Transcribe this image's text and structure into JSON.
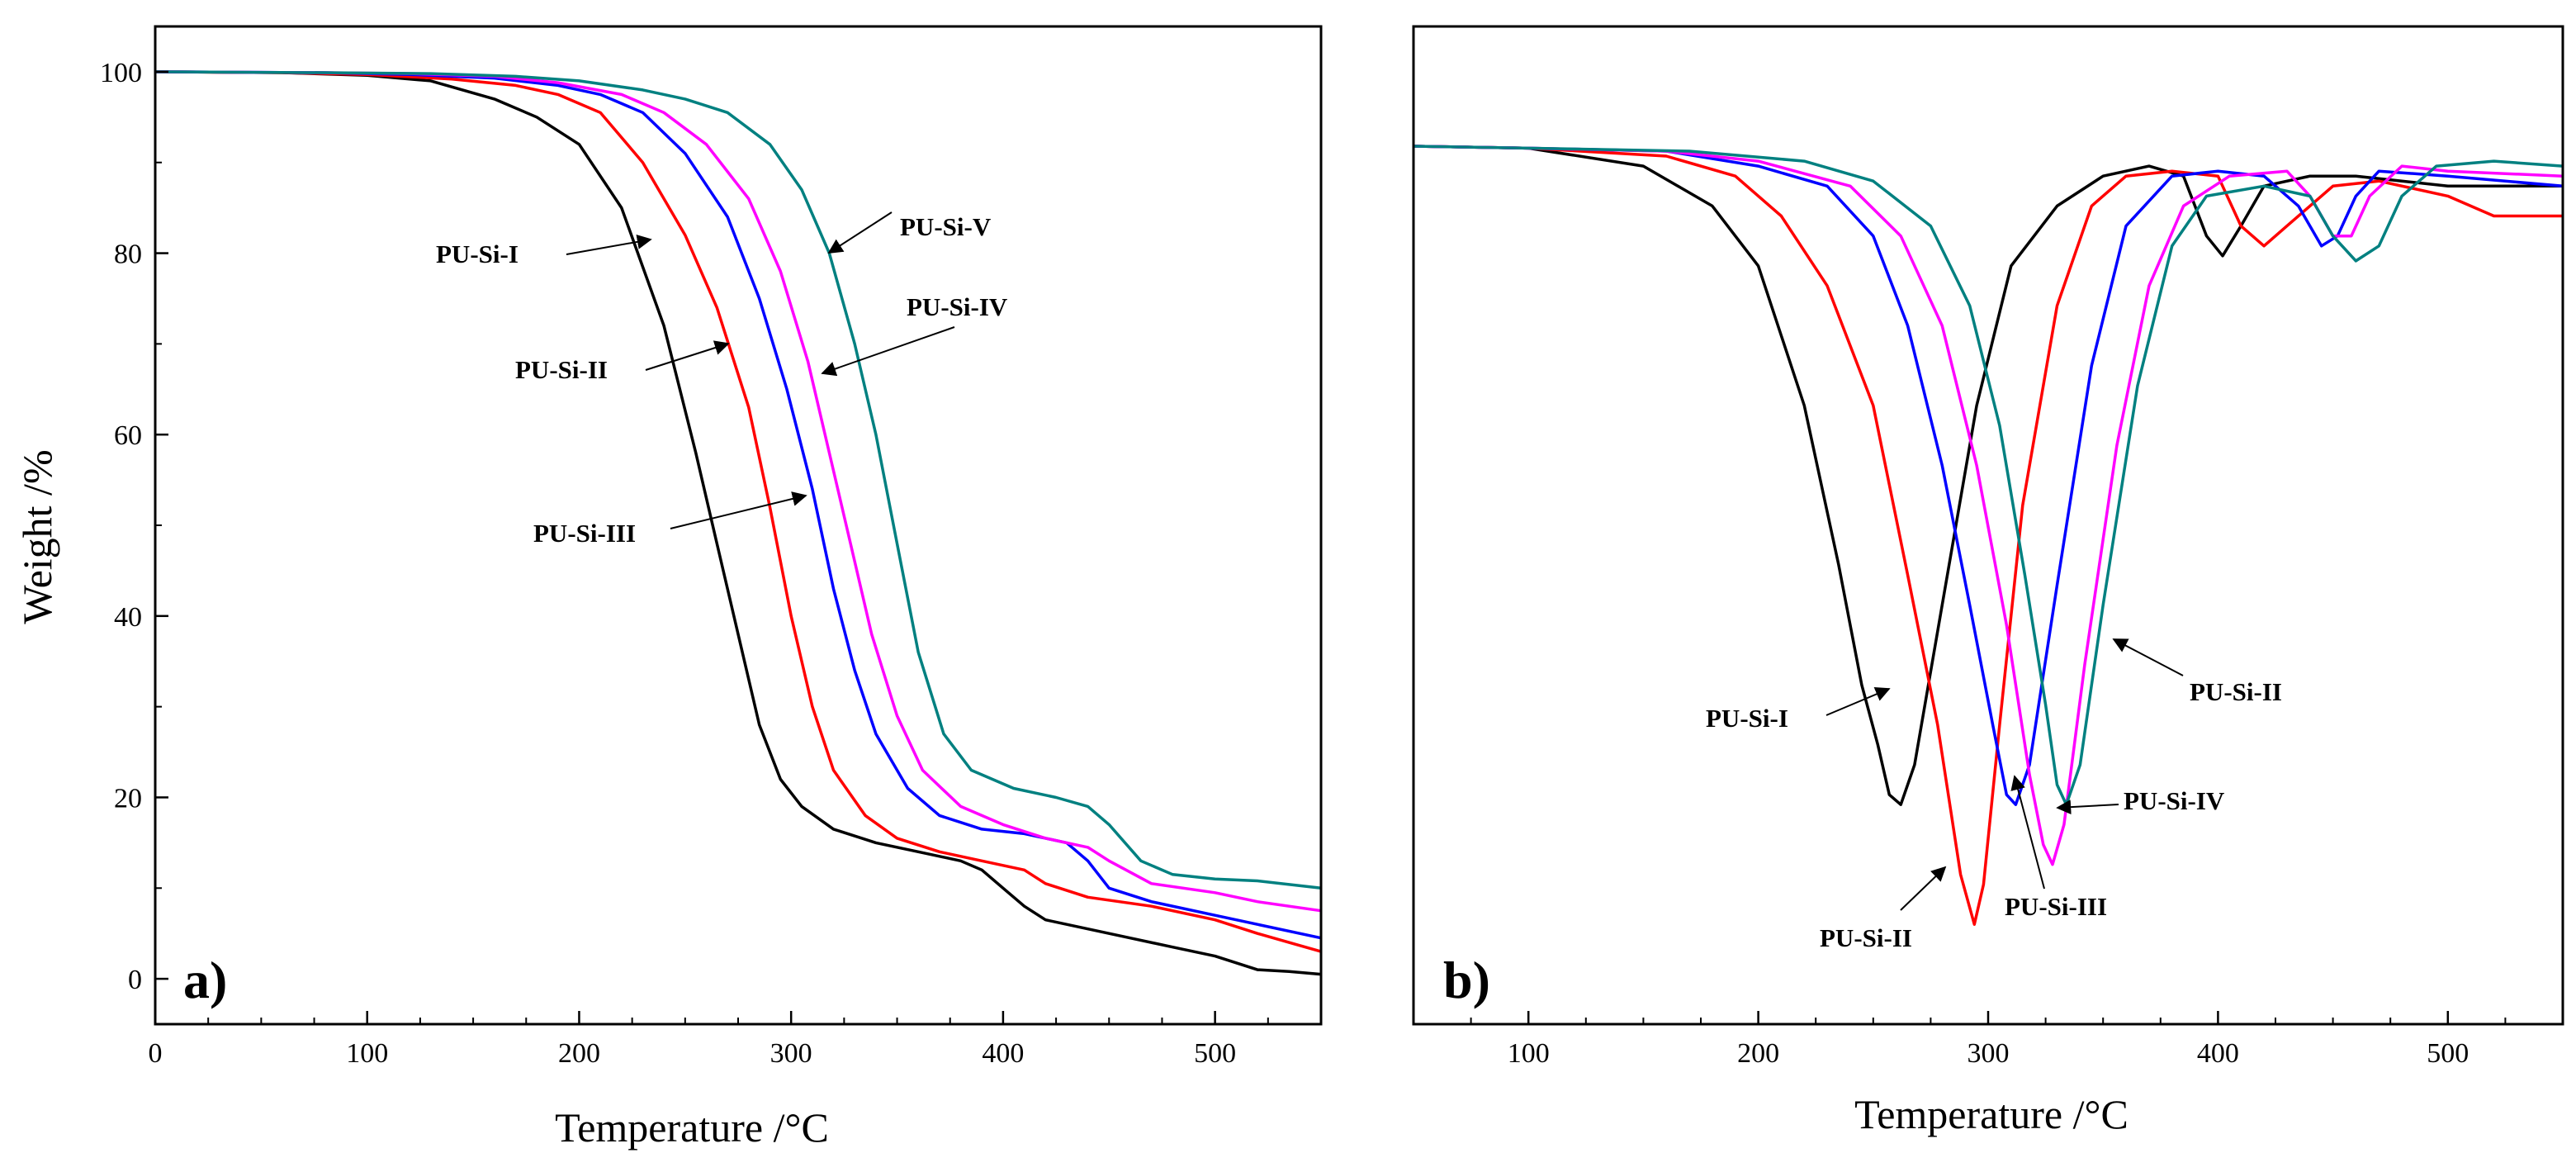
{
  "chart_data": [
    {
      "type": "line",
      "panel_label": "a)",
      "xlabel": "Temperature /°C",
      "ylabel": "Weight /%",
      "xlim": [
        0,
        550
      ],
      "ylim": [
        -5,
        105
      ],
      "xticks": [
        0,
        100,
        200,
        300,
        400,
        500
      ],
      "xtick_labels": [
        "0",
        "100",
        "200",
        "300",
        "400",
        "500"
      ],
      "yticks": [
        0,
        20,
        40,
        60,
        80,
        100
      ],
      "ytick_labels": [
        "0",
        "20",
        "40",
        "60",
        "80",
        "100"
      ],
      "grid": false,
      "series": [
        {
          "name": "PU-Si-I",
          "color": "#000000",
          "points": [
            [
              0,
              100
            ],
            [
              60,
              99.9
            ],
            [
              100,
              99.6
            ],
            [
              130,
              99
            ],
            [
              160,
              97
            ],
            [
              180,
              95
            ],
            [
              200,
              92
            ],
            [
              220,
              85
            ],
            [
              240,
              72
            ],
            [
              255,
              58
            ],
            [
              265,
              48
            ],
            [
              275,
              38
            ],
            [
              285,
              28
            ],
            [
              295,
              22
            ],
            [
              305,
              19
            ],
            [
              320,
              16.5
            ],
            [
              340,
              15
            ],
            [
              360,
              14
            ],
            [
              380,
              13
            ],
            [
              390,
              12
            ],
            [
              400,
              10
            ],
            [
              410,
              8
            ],
            [
              420,
              6.5
            ],
            [
              440,
              5.5
            ],
            [
              460,
              4.5
            ],
            [
              480,
              3.5
            ],
            [
              500,
              2.5
            ],
            [
              520,
              1
            ],
            [
              535,
              0.8
            ],
            [
              550,
              0.5
            ]
          ]
        },
        {
          "name": "PU-Si-II",
          "color": "#ff0000",
          "points": [
            [
              0,
              100
            ],
            [
              60,
              99.9
            ],
            [
              100,
              99.7
            ],
            [
              140,
              99.2
            ],
            [
              170,
              98.5
            ],
            [
              190,
              97.5
            ],
            [
              210,
              95.5
            ],
            [
              230,
              90
            ],
            [
              250,
              82
            ],
            [
              265,
              74
            ],
            [
              280,
              63
            ],
            [
              290,
              52
            ],
            [
              300,
              40
            ],
            [
              310,
              30
            ],
            [
              320,
              23
            ],
            [
              335,
              18
            ],
            [
              350,
              15.5
            ],
            [
              370,
              14
            ],
            [
              390,
              13
            ],
            [
              410,
              12
            ],
            [
              420,
              10.5
            ],
            [
              440,
              9
            ],
            [
              470,
              8
            ],
            [
              500,
              6.5
            ],
            [
              520,
              5
            ],
            [
              550,
              3
            ]
          ]
        },
        {
          "name": "PU-Si-III",
          "color": "#0000ff",
          "points": [
            [
              0,
              100
            ],
            [
              80,
              99.9
            ],
            [
              120,
              99.7
            ],
            [
              160,
              99.3
            ],
            [
              190,
              98.5
            ],
            [
              210,
              97.5
            ],
            [
              230,
              95.5
            ],
            [
              250,
              91
            ],
            [
              270,
              84
            ],
            [
              285,
              75
            ],
            [
              298,
              65
            ],
            [
              310,
              54
            ],
            [
              320,
              43
            ],
            [
              330,
              34
            ],
            [
              340,
              27
            ],
            [
              355,
              21
            ],
            [
              370,
              18
            ],
            [
              390,
              16.5
            ],
            [
              410,
              16
            ],
            [
              430,
              15
            ],
            [
              440,
              13
            ],
            [
              450,
              10
            ],
            [
              470,
              8.5
            ],
            [
              500,
              7
            ],
            [
              520,
              6
            ],
            [
              550,
              4.5
            ]
          ]
        },
        {
          "name": "PU-Si-IV",
          "color": "#ff00ff",
          "points": [
            [
              0,
              100
            ],
            [
              80,
              99.9
            ],
            [
              120,
              99.8
            ],
            [
              160,
              99.5
            ],
            [
              190,
              98.8
            ],
            [
              220,
              97.5
            ],
            [
              240,
              95.5
            ],
            [
              260,
              92
            ],
            [
              280,
              86
            ],
            [
              295,
              78
            ],
            [
              308,
              68
            ],
            [
              318,
              58
            ],
            [
              328,
              48
            ],
            [
              338,
              38
            ],
            [
              350,
              29
            ],
            [
              362,
              23
            ],
            [
              380,
              19
            ],
            [
              400,
              17
            ],
            [
              420,
              15.5
            ],
            [
              440,
              14.5
            ],
            [
              450,
              13
            ],
            [
              470,
              10.5
            ],
            [
              500,
              9.5
            ],
            [
              520,
              8.5
            ],
            [
              550,
              7.5
            ]
          ]
        },
        {
          "name": "PU-Si-V",
          "color": "#008080",
          "points": [
            [
              0,
              100
            ],
            [
              80,
              99.9
            ],
            [
              130,
              99.8
            ],
            [
              170,
              99.5
            ],
            [
              200,
              99
            ],
            [
              230,
              98
            ],
            [
              250,
              97
            ],
            [
              270,
              95.5
            ],
            [
              290,
              92
            ],
            [
              305,
              87
            ],
            [
              318,
              80
            ],
            [
              330,
              70
            ],
            [
              340,
              60
            ],
            [
              350,
              48
            ],
            [
              360,
              36
            ],
            [
              372,
              27
            ],
            [
              385,
              23
            ],
            [
              405,
              21
            ],
            [
              425,
              20
            ],
            [
              440,
              19
            ],
            [
              450,
              17
            ],
            [
              465,
              13
            ],
            [
              480,
              11.5
            ],
            [
              500,
              11
            ],
            [
              520,
              10.8
            ],
            [
              550,
              10
            ]
          ]
        }
      ],
      "annotations": [
        "PU-Si-V",
        "PU-Si-I",
        "PU-Si-IV",
        "PU-Si-II",
        "PU-Si-III"
      ]
    },
    {
      "type": "line",
      "panel_label": "b)",
      "xlabel": "Temperature /°C",
      "ylabel": "",
      "xlim": [
        50,
        550
      ],
      "ylim": [
        0,
        100
      ],
      "xticks": [
        100,
        200,
        300,
        400,
        500
      ],
      "xtick_labels": [
        "100",
        "200",
        "300",
        "400",
        "500"
      ],
      "yticks": [],
      "grid": false,
      "series": [
        {
          "name": "PU-Si-I",
          "color": "#000000",
          "points": [
            [
              50,
              88
            ],
            [
              100,
              87.8
            ],
            [
              150,
              86
            ],
            [
              180,
              82
            ],
            [
              200,
              76
            ],
            [
              220,
              62
            ],
            [
              235,
              46
            ],
            [
              245,
              34
            ],
            [
              252,
              28
            ],
            [
              257,
              23
            ],
            [
              262,
              22
            ],
            [
              268,
              26
            ],
            [
              280,
              42
            ],
            [
              295,
              62
            ],
            [
              310,
              76
            ],
            [
              330,
              82
            ],
            [
              350,
              85
            ],
            [
              370,
              86
            ],
            [
              385,
              85
            ],
            [
              395,
              79
            ],
            [
              402,
              77
            ],
            [
              410,
              80
            ],
            [
              420,
              84
            ],
            [
              440,
              85
            ],
            [
              460,
              85
            ],
            [
              480,
              84.5
            ],
            [
              500,
              84
            ],
            [
              550,
              84
            ]
          ]
        },
        {
          "name": "PU-Si-II",
          "color": "#ff0000",
          "points": [
            [
              50,
              88
            ],
            [
              100,
              87.8
            ],
            [
              160,
              87
            ],
            [
              190,
              85
            ],
            [
              210,
              81
            ],
            [
              230,
              74
            ],
            [
              250,
              62
            ],
            [
              265,
              45
            ],
            [
              278,
              30
            ],
            [
              288,
              15
            ],
            [
              294,
              10
            ],
            [
              298,
              14
            ],
            [
              305,
              30
            ],
            [
              315,
              52
            ],
            [
              330,
              72
            ],
            [
              345,
              82
            ],
            [
              360,
              85
            ],
            [
              380,
              85.5
            ],
            [
              400,
              85
            ],
            [
              410,
              80
            ],
            [
              420,
              78
            ],
            [
              430,
              80
            ],
            [
              450,
              84
            ],
            [
              470,
              84.5
            ],
            [
              500,
              83
            ],
            [
              520,
              81
            ],
            [
              550,
              81
            ]
          ]
        },
        {
          "name": "PU-Si-III",
          "color": "#0000ff",
          "points": [
            [
              50,
              88
            ],
            [
              100,
              87.8
            ],
            [
              160,
              87.5
            ],
            [
              200,
              86
            ],
            [
              230,
              84
            ],
            [
              250,
              79
            ],
            [
              265,
              70
            ],
            [
              280,
              56
            ],
            [
              292,
              42
            ],
            [
              302,
              30
            ],
            [
              308,
              23
            ],
            [
              312,
              22
            ],
            [
              318,
              26
            ],
            [
              330,
              44
            ],
            [
              345,
              66
            ],
            [
              360,
              80
            ],
            [
              380,
              85
            ],
            [
              400,
              85.5
            ],
            [
              420,
              85
            ],
            [
              435,
              82
            ],
            [
              445,
              78
            ],
            [
              452,
              79
            ],
            [
              460,
              83
            ],
            [
              470,
              85.5
            ],
            [
              500,
              85
            ],
            [
              550,
              84
            ]
          ]
        },
        {
          "name": "PU-Si-IV",
          "color": "#ff00ff",
          "points": [
            [
              50,
              88
            ],
            [
              100,
              87.8
            ],
            [
              160,
              87.5
            ],
            [
              200,
              86.5
            ],
            [
              240,
              84
            ],
            [
              262,
              79
            ],
            [
              280,
              70
            ],
            [
              295,
              56
            ],
            [
              308,
              40
            ],
            [
              318,
              25
            ],
            [
              324,
              18
            ],
            [
              328,
              16
            ],
            [
              333,
              20
            ],
            [
              342,
              36
            ],
            [
              356,
              58
            ],
            [
              370,
              74
            ],
            [
              385,
              82
            ],
            [
              405,
              85
            ],
            [
              430,
              85.5
            ],
            [
              440,
              83
            ],
            [
              450,
              79
            ],
            [
              458,
              79
            ],
            [
              466,
              83
            ],
            [
              480,
              86
            ],
            [
              500,
              85.5
            ],
            [
              550,
              85
            ]
          ]
        },
        {
          "name": "PU-Si-V",
          "color": "#008080",
          "points": [
            [
              50,
              88
            ],
            [
              100,
              87.8
            ],
            [
              170,
              87.5
            ],
            [
              220,
              86.5
            ],
            [
              250,
              84.5
            ],
            [
              275,
              80
            ],
            [
              292,
              72
            ],
            [
              305,
              60
            ],
            [
              316,
              45
            ],
            [
              325,
              32
            ],
            [
              330,
              24
            ],
            [
              334,
              22
            ],
            [
              340,
              26
            ],
            [
              350,
              42
            ],
            [
              365,
              64
            ],
            [
              380,
              78
            ],
            [
              395,
              83
            ],
            [
              420,
              84
            ],
            [
              440,
              83
            ],
            [
              450,
              79
            ],
            [
              460,
              76.5
            ],
            [
              470,
              78
            ],
            [
              480,
              83
            ],
            [
              495,
              86
            ],
            [
              520,
              86.5
            ],
            [
              550,
              86
            ]
          ]
        }
      ],
      "annotations": [
        "PU-Si-I",
        "PU-Si-II",
        "PU-Si-II",
        "PU-Si-IV",
        "PU-Si-III"
      ]
    }
  ]
}
